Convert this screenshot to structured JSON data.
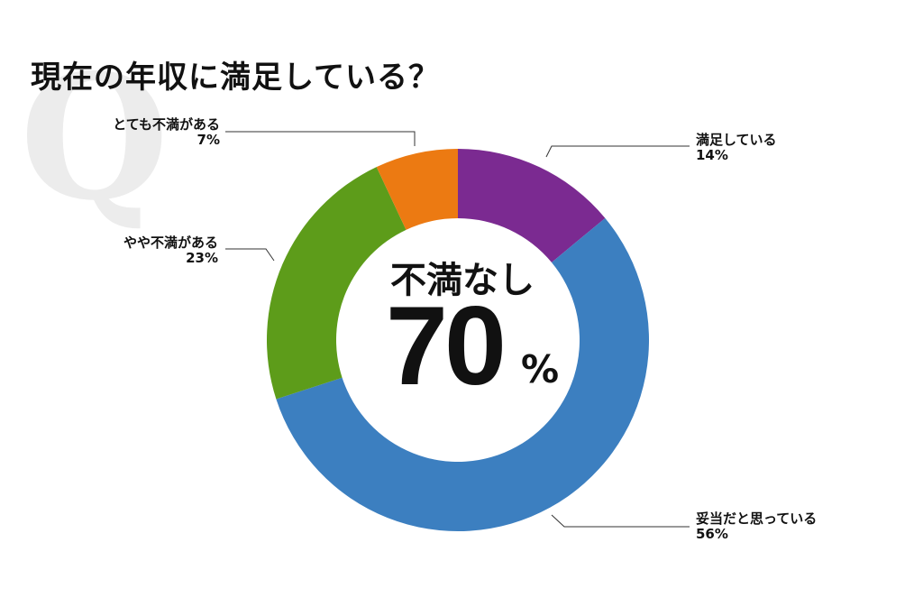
{
  "title": "現在の年収に満足している？",
  "watermark": "Q",
  "center": {
    "caption": "不満なし",
    "value": "70",
    "unit": "%"
  },
  "chart_data": {
    "type": "pie",
    "title": "現在の年収に満足している？",
    "donut": true,
    "slices": [
      {
        "label": "満足している",
        "value": 14,
        "display": "14%",
        "color": "#7b2a91"
      },
      {
        "label": "妥当だと思っている",
        "value": 56,
        "display": "56%",
        "color": "#3c7fc0"
      },
      {
        "label": "やや不満がある",
        "value": 23,
        "display": "23%",
        "color": "#5d9c1a"
      },
      {
        "label": "とても不満がある",
        "value": 7,
        "display": "7%",
        "color": "#ec7a12"
      }
    ]
  }
}
